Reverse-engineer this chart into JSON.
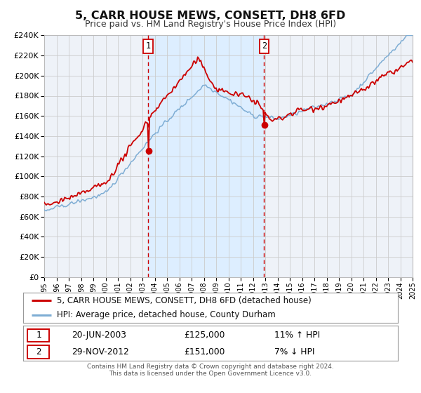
{
  "title": "5, CARR HOUSE MEWS, CONSETT, DH8 6FD",
  "subtitle": "Price paid vs. HM Land Registry's House Price Index (HPI)",
  "legend_line1": "5, CARR HOUSE MEWS, CONSETT, DH8 6FD (detached house)",
  "legend_line2": "HPI: Average price, detached house, County Durham",
  "footnote1": "Contains HM Land Registry data © Crown copyright and database right 2024.",
  "footnote2": "This data is licensed under the Open Government Licence v3.0.",
  "marker1_date": "20-JUN-2003",
  "marker1_price": "£125,000",
  "marker1_hpi": "11% ↑ HPI",
  "marker2_date": "29-NOV-2012",
  "marker2_price": "£151,000",
  "marker2_hpi": "7% ↓ HPI",
  "red_color": "#cc0000",
  "blue_color": "#7eadd4",
  "shade_color": "#ddeeff",
  "background_color": "#eef2f8",
  "grid_color": "#cccccc",
  "year_start": 1995,
  "year_end": 2025,
  "ymin": 0,
  "ymax": 240000,
  "ytick_step": 20000,
  "marker1_year": 2003.46,
  "marker2_year": 2012.91,
  "marker1_val": 125000,
  "marker2_val": 151000
}
